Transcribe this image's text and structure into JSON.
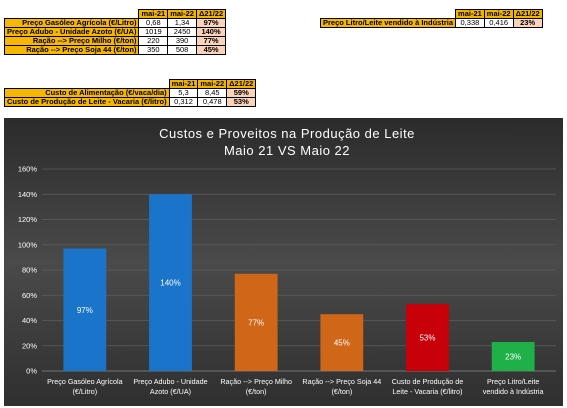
{
  "table1": {
    "headers": [
      "mai-21",
      "mai-22",
      "Δ21/22"
    ],
    "rows": [
      {
        "label": "Preço Gasóleo Agrícola (€/Litro)",
        "v1": "0,68",
        "v2": "1,34",
        "pct": "97%"
      },
      {
        "label": "Preço Adubo - Unidade Azoto (€/UA)",
        "v1": "1019",
        "v2": "2450",
        "pct": "140%"
      },
      {
        "label": "Ração --> Preço Milho (€/ton)",
        "v1": "220",
        "v2": "390",
        "pct": "77%"
      },
      {
        "label": "Ração --> Preço Soja 44 (€/ton)",
        "v1": "350",
        "v2": "508",
        "pct": "45%"
      }
    ]
  },
  "table2": {
    "headers": [
      "mai-21",
      "mai-22",
      "Δ21/22"
    ],
    "rows": [
      {
        "label": "Preço Litro/Leite vendido à Indústria",
        "v1": "0,338",
        "v2": "0,416",
        "pct": "23%"
      }
    ]
  },
  "table3": {
    "headers": [
      "mai-21",
      "mai-22",
      "Δ21/22"
    ],
    "rows": [
      {
        "label": "Custo de Alimentação (€/vaca/dia)",
        "v1": "5,3",
        "v2": "8,45",
        "pct": "59%"
      },
      {
        "label": "Custo de Produção de Leite - Vacaria (€/litro)",
        "v1": "0,312",
        "v2": "0,478",
        "pct": "53%"
      }
    ]
  },
  "chart_data": {
    "type": "bar",
    "title": "Custos e Proveitos na Produção de Leite",
    "subtitle": "Maio 21 VS Maio 22",
    "categories": [
      [
        "Preço Gasóleo Agrícola",
        "(€/Litro)"
      ],
      [
        "Preço Adubo - Unidade",
        "Azoto (€/UA)"
      ],
      [
        "Ração --> Preço Milho",
        "(€/ton)"
      ],
      [
        "Ração --> Preço Soja 44",
        "(€/ton)"
      ],
      [
        "Custo de Produção de",
        "Leite - Vacaria (€/litro)"
      ],
      [
        "Preço Litro/Leite",
        "vendido à Indústria"
      ]
    ],
    "values": [
      0.97,
      1.4,
      0.77,
      0.45,
      0.53,
      0.23
    ],
    "value_labels": [
      "97%",
      "140%",
      "77%",
      "45%",
      "53%",
      "23%"
    ],
    "colors": [
      "#1a74c9",
      "#1a74c9",
      "#d06618",
      "#d06618",
      "#c8000a",
      "#1fb049"
    ],
    "ylim": [
      0,
      1.6
    ],
    "yticks": [
      "0%",
      "20%",
      "40%",
      "60%",
      "80%",
      "100%",
      "120%",
      "140%",
      "160%"
    ],
    "grid": true,
    "background": "#3a3a3a",
    "xlabel": "",
    "ylabel": ""
  }
}
